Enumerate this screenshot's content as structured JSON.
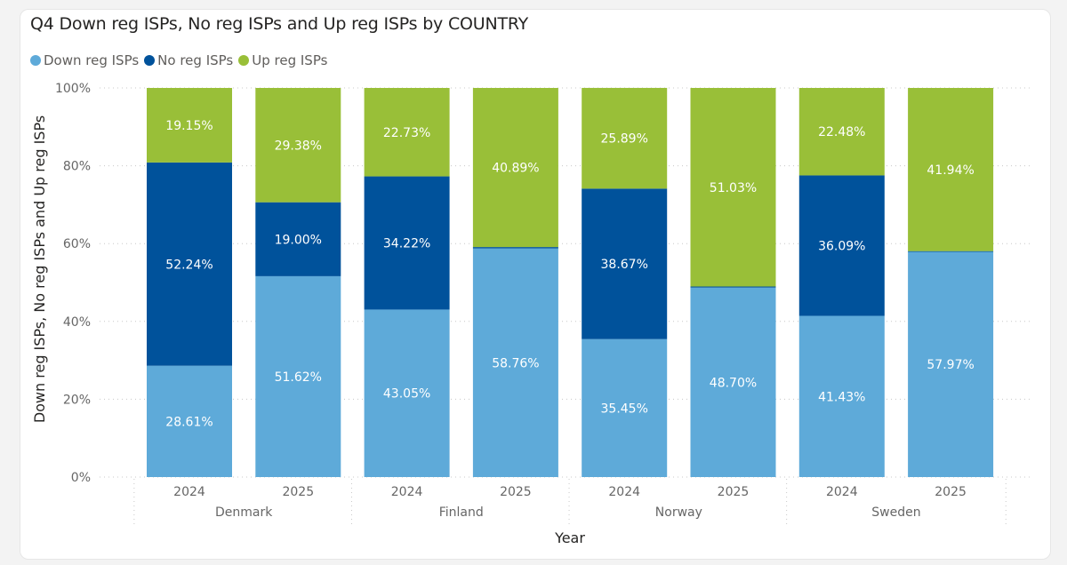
{
  "chart_data": {
    "type": "bar",
    "stacked": "100%",
    "title": "Q4 Down reg ISPs, No reg ISPs and Up reg ISPs by COUNTRY",
    "xlabel": "Year",
    "ylabel": "Down reg ISPs, No reg ISPs and Up reg ISPs",
    "ylim": [
      0,
      100
    ],
    "yticks": [
      "0%",
      "20%",
      "40%",
      "60%",
      "80%",
      "100%"
    ],
    "ytick_values": [
      0,
      20,
      40,
      60,
      80,
      100
    ],
    "grid": true,
    "legend_position": "top-left",
    "groups": [
      {
        "name": "Denmark",
        "categories": [
          "2024",
          "2025"
        ]
      },
      {
        "name": "Finland",
        "categories": [
          "2024",
          "2025"
        ]
      },
      {
        "name": "Norway",
        "categories": [
          "2024",
          "2025"
        ]
      },
      {
        "name": "Sweden",
        "categories": [
          "2024",
          "2025"
        ]
      }
    ],
    "categories": [
      "Denmark 2024",
      "Denmark 2025",
      "Finland 2024",
      "Finland 2025",
      "Norway 2024",
      "Norway 2025",
      "Sweden 2024",
      "Sweden 2025"
    ],
    "series": [
      {
        "name": "Down reg ISPs",
        "color": "#5EAAD9",
        "values": [
          28.61,
          51.62,
          43.05,
          58.76,
          35.45,
          48.7,
          41.43,
          57.97
        ],
        "labels": [
          "28.61%",
          "51.62%",
          "43.05%",
          "58.76%",
          "35.45%",
          "48.70%",
          "41.43%",
          "57.97%"
        ]
      },
      {
        "name": "No reg ISPs",
        "color": "#00529B",
        "values": [
          52.24,
          19.0,
          34.22,
          0.35,
          38.67,
          0.27,
          36.09,
          0.09
        ],
        "labels": [
          "52.24%",
          "19.00%",
          "34.22%",
          "",
          "38.67%",
          "",
          "36.09%",
          ""
        ]
      },
      {
        "name": "Up reg ISPs",
        "color": "#99BF38",
        "values": [
          19.15,
          29.38,
          22.73,
          40.89,
          25.89,
          51.03,
          22.48,
          41.94
        ],
        "labels": [
          "19.15%",
          "29.38%",
          "22.73%",
          "40.89%",
          "25.89%",
          "51.03%",
          "22.48%",
          "41.94%"
        ]
      }
    ]
  }
}
